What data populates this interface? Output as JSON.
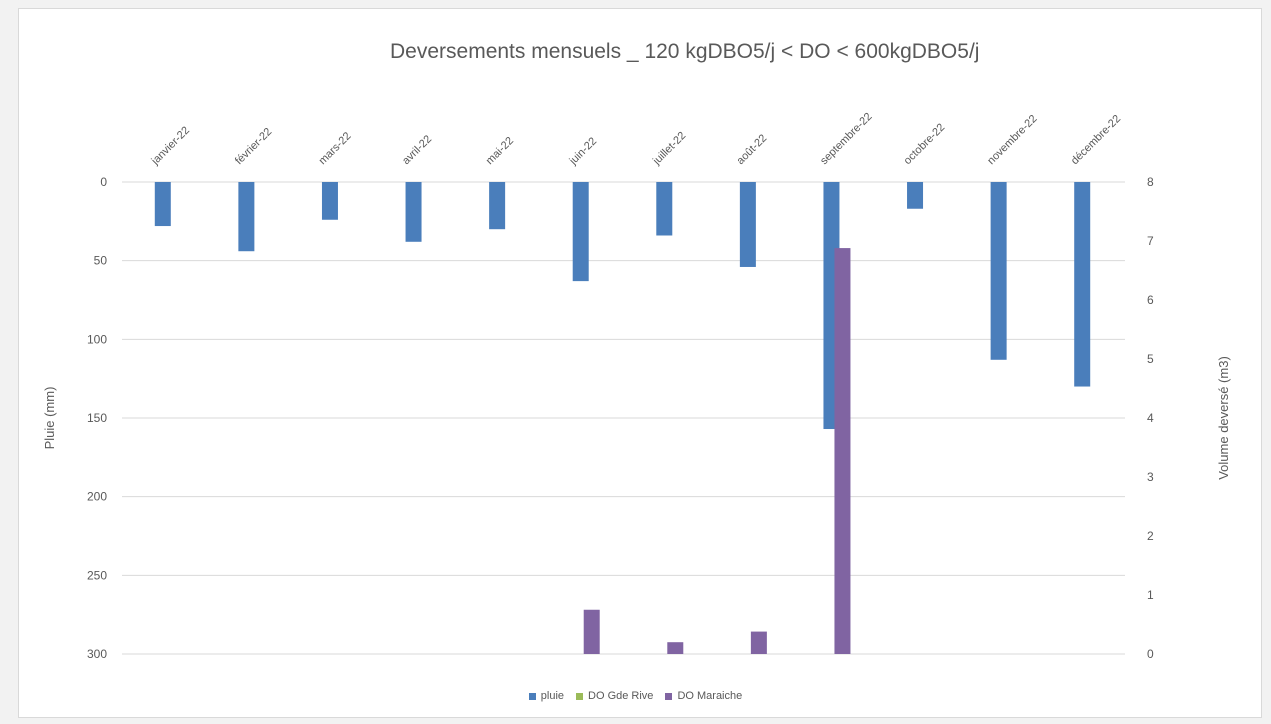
{
  "chart_data": {
    "type": "bar",
    "title": "Deversements mensuels _ 120 kgDBO5/j < DO < 600kgDBO5/j",
    "categories": [
      "janvier-22",
      "février-22",
      "mars-22",
      "avril-22",
      "mai-22",
      "juin-22",
      "juillet-22",
      "août-22",
      "septembre-22",
      "octobre-22",
      "novembre-22",
      "décembre-22"
    ],
    "left_axis": {
      "label": "Pluie (mm)",
      "min": 0,
      "max": 300,
      "inverted": true,
      "ticks": [
        0,
        50,
        100,
        150,
        200,
        250,
        300
      ]
    },
    "right_axis": {
      "label": "Volume deversé (m3)",
      "min": 0,
      "max": 8,
      "ticks": [
        0,
        1,
        2,
        3,
        4,
        5,
        6,
        7,
        8
      ]
    },
    "series": [
      {
        "name": "pluie",
        "axis": "left",
        "color": "#4a7ebb",
        "values": [
          28,
          44,
          24,
          38,
          30,
          63,
          34,
          54,
          157,
          17,
          113,
          130
        ]
      },
      {
        "name": "DO Gde Rive",
        "axis": "right",
        "color": "#9bbb59",
        "values": [
          0,
          0,
          0,
          0,
          0,
          0,
          0,
          0,
          0,
          0,
          0,
          0
        ]
      },
      {
        "name": "DO Maraiche",
        "axis": "right",
        "color": "#8064a2",
        "values": [
          0,
          0,
          0,
          0,
          0,
          0.75,
          0.2,
          0.38,
          6.88,
          0,
          0,
          0
        ]
      }
    ],
    "grid": true,
    "legend_position": "bottom"
  }
}
